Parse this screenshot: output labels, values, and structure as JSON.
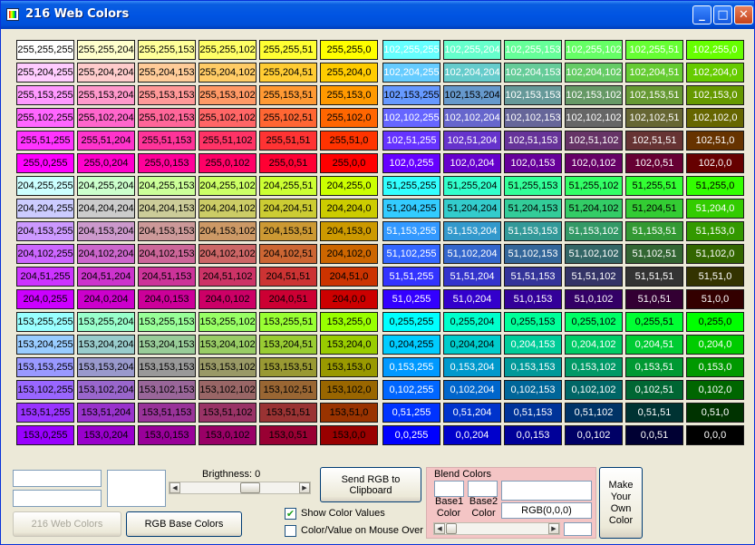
{
  "window": {
    "title": "216 Web Colors",
    "controls": {
      "minimize": "_",
      "maximize": "□",
      "close": "✕"
    },
    "icons": {
      "app": "palette-icon"
    }
  },
  "colors": {
    "levels": [
      255,
      204,
      153,
      102,
      51,
      0
    ]
  },
  "bottom": {
    "brightness_label": "Brigthness: 0",
    "send_rgb_button": "Send RGB to Clipboard",
    "show_color_values": {
      "label": "Show Color Values",
      "checked": true,
      "mark": "✔"
    },
    "color_value_mouse_over": {
      "label": "Color/Value on Mouse Over",
      "checked": false,
      "mark": ""
    },
    "web_colors_button": "216 Web Colors",
    "rgb_base_colors_button": "RGB Base Colors",
    "blend": {
      "title": "Blend Colors",
      "base1_label": "Base1 Color",
      "base2_label": "Base2 Color",
      "rgb_value": "RGB(0,0,0)"
    },
    "make_own_button": "Make Your Own Color"
  }
}
